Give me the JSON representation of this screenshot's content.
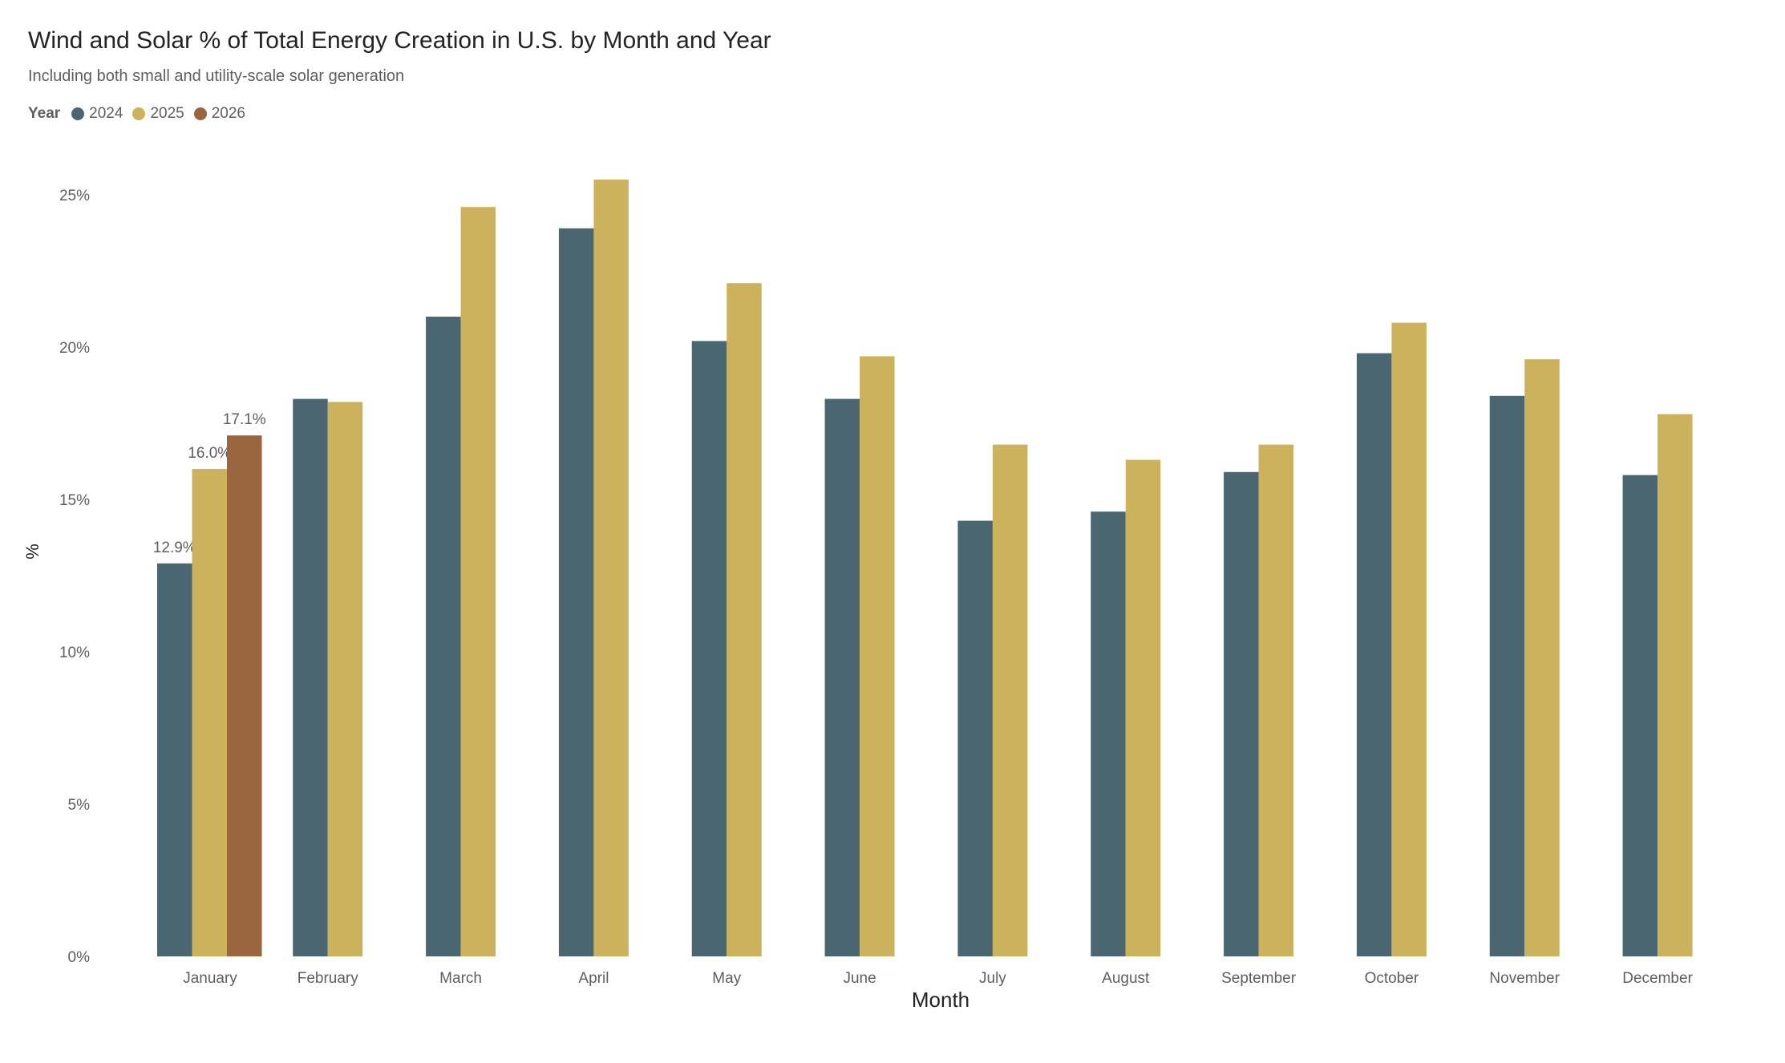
{
  "chart_data": {
    "type": "bar",
    "title": "Wind and Solar % of Total Energy Creation in U.S. by Month and Year",
    "subtitle": "Including both small and utility-scale solar generation",
    "legend_title": "Year",
    "legend_position": "top-left",
    "xlabel": "Month",
    "ylabel": "%",
    "ylim": [
      0,
      25
    ],
    "yticks": [
      0,
      5,
      10,
      15,
      20,
      25
    ],
    "ytick_labels": [
      "0%",
      "5%",
      "10%",
      "15%",
      "20%",
      "25%"
    ],
    "grid": false,
    "categories": [
      "January",
      "February",
      "March",
      "April",
      "May",
      "June",
      "July",
      "August",
      "September",
      "October",
      "November",
      "December"
    ],
    "series": [
      {
        "name": "2024",
        "color": "#4a6670",
        "values": [
          12.9,
          18.3,
          21.0,
          23.9,
          20.2,
          18.3,
          14.3,
          14.6,
          15.9,
          19.8,
          18.4,
          15.8
        ]
      },
      {
        "name": "2025",
        "color": "#ccb25c",
        "values": [
          16.0,
          18.2,
          24.6,
          25.5,
          22.1,
          19.7,
          16.8,
          16.3,
          16.8,
          20.8,
          19.6,
          17.8
        ]
      },
      {
        "name": "2026",
        "color": "#9b6540",
        "values": [
          17.1,
          null,
          null,
          null,
          null,
          null,
          null,
          null,
          null,
          null,
          null,
          null
        ]
      }
    ],
    "data_labels": [
      {
        "category": "January",
        "series": "2024",
        "text": "12.9%"
      },
      {
        "category": "January",
        "series": "2025",
        "text": "16.0%"
      },
      {
        "category": "January",
        "series": "2026",
        "text": "17.1%"
      }
    ]
  }
}
